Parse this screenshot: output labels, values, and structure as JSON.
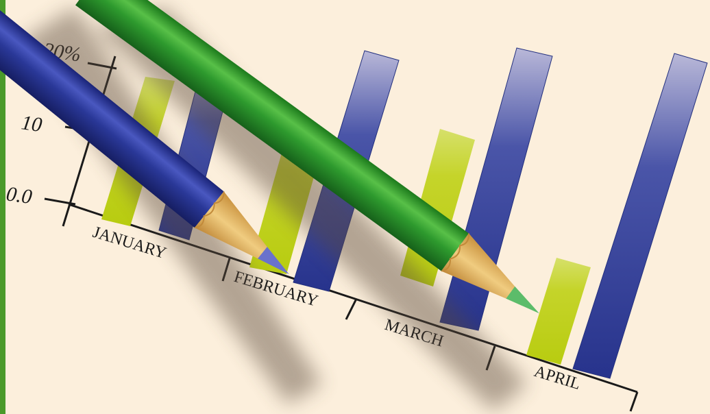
{
  "illustration": {
    "y_axis_labels": [
      "20%",
      "10",
      "0.0"
    ],
    "month_labels": [
      "JANUARY",
      "FEBRUARY",
      "MARCH",
      "APRIL"
    ],
    "colors": {
      "background": "#fcefdc",
      "left_border": "#4a9a2a",
      "bar_yellow_green": "#c8d624",
      "bar_blue": "#2e3c95",
      "pencil_blue": "#2b3a9a",
      "pencil_green": "#2e9a2e",
      "pencil_wood": "#e0b060"
    }
  }
}
